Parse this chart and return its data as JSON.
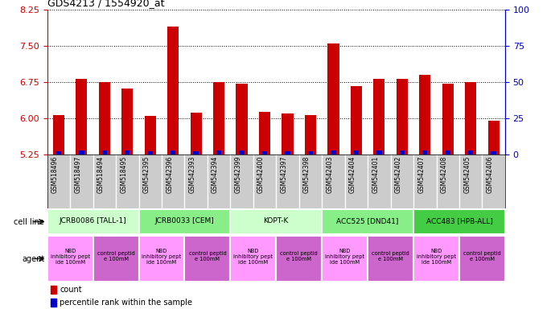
{
  "title": "GDS4213 / 1554920_at",
  "samples": [
    "GSM518496",
    "GSM518497",
    "GSM518494",
    "GSM518495",
    "GSM542395",
    "GSM542396",
    "GSM542393",
    "GSM542394",
    "GSM542399",
    "GSM542400",
    "GSM542397",
    "GSM542398",
    "GSM542403",
    "GSM542404",
    "GSM542401",
    "GSM542402",
    "GSM542407",
    "GSM542408",
    "GSM542405",
    "GSM542406"
  ],
  "count_values": [
    6.07,
    6.82,
    6.75,
    6.62,
    6.05,
    7.9,
    6.12,
    6.75,
    6.72,
    6.13,
    6.09,
    6.07,
    7.55,
    6.67,
    6.82,
    6.82,
    6.9,
    6.72,
    6.75,
    5.95
  ],
  "percentile_values": [
    2,
    3,
    3,
    3,
    2,
    3,
    2,
    3,
    3,
    2,
    2,
    2,
    3,
    3,
    3,
    3,
    3,
    3,
    3,
    2
  ],
  "ylim_left": [
    5.25,
    8.25
  ],
  "ylim_right": [
    0,
    100
  ],
  "yticks_left": [
    5.25,
    6.0,
    6.75,
    7.5,
    8.25
  ],
  "yticks_right": [
    0,
    25,
    50,
    75,
    100
  ],
  "bar_color": "#cc0000",
  "percentile_color": "#0000cc",
  "cell_lines": [
    {
      "label": "JCRB0086 [TALL-1]",
      "start": 0,
      "end": 4,
      "color": "#ccffcc"
    },
    {
      "label": "JCRB0033 [CEM]",
      "start": 4,
      "end": 8,
      "color": "#88ee88"
    },
    {
      "label": "KOPT-K",
      "start": 8,
      "end": 12,
      "color": "#ccffcc"
    },
    {
      "label": "ACC525 [DND41]",
      "start": 12,
      "end": 16,
      "color": "#88ee88"
    },
    {
      "label": "ACC483 [HPB-ALL]",
      "start": 16,
      "end": 20,
      "color": "#44cc44"
    }
  ],
  "agents": [
    {
      "label": "NBD\ninhibitory pept\nide 100mM",
      "start": 0,
      "end": 2,
      "color": "#ff99ff"
    },
    {
      "label": "control peptid\ne 100mM",
      "start": 2,
      "end": 4,
      "color": "#cc66cc"
    },
    {
      "label": "NBD\ninhibitory pept\nide 100mM",
      "start": 4,
      "end": 6,
      "color": "#ff99ff"
    },
    {
      "label": "control peptid\ne 100mM",
      "start": 6,
      "end": 8,
      "color": "#cc66cc"
    },
    {
      "label": "NBD\ninhibitory pept\nide 100mM",
      "start": 8,
      "end": 10,
      "color": "#ff99ff"
    },
    {
      "label": "control peptid\ne 100mM",
      "start": 10,
      "end": 12,
      "color": "#cc66cc"
    },
    {
      "label": "NBD\ninhibitory pept\nide 100mM",
      "start": 12,
      "end": 14,
      "color": "#ff99ff"
    },
    {
      "label": "control peptid\ne 100mM",
      "start": 14,
      "end": 16,
      "color": "#cc66cc"
    },
    {
      "label": "NBD\ninhibitory pept\nide 100mM",
      "start": 16,
      "end": 18,
      "color": "#ff99ff"
    },
    {
      "label": "control peptid\ne 100mM",
      "start": 18,
      "end": 20,
      "color": "#cc66cc"
    }
  ],
  "tick_label_color_left": "#cc0000",
  "tick_label_color_right": "#0000cc",
  "sample_box_color": "#cccccc"
}
